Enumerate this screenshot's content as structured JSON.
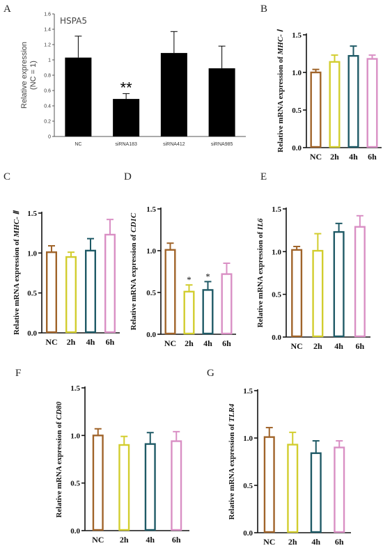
{
  "chart_data": [
    {
      "panel": "A",
      "type": "bar",
      "title": "HSPA5",
      "ylabel": "Relative expression\n(NC = 1)",
      "categories": [
        "NC",
        "siRNA183",
        "siRNA412",
        "siRNA985"
      ],
      "values": [
        1.03,
        0.49,
        1.09,
        0.89
      ],
      "errors": [
        0.28,
        0.07,
        0.28,
        0.29
      ],
      "significance": [
        "",
        "**",
        "",
        ""
      ],
      "ylim": [
        0,
        1.6
      ],
      "yticks": [
        "0",
        "0.2",
        "0.4",
        "0.6",
        "0.8",
        "1",
        "1.2",
        "1.4",
        "1.6"
      ],
      "colors": [
        "#000000",
        "#000000",
        "#000000",
        "#000000"
      ],
      "bar_style": "filled"
    },
    {
      "panel": "B",
      "type": "bar",
      "ylabel_prefix": "Relative mRNA expression of ",
      "gene": "MHC- Ⅰ",
      "categories": [
        "NC",
        "2h",
        "4h",
        "6h"
      ],
      "values": [
        1.0,
        1.14,
        1.22,
        1.18
      ],
      "errors": [
        0.04,
        0.09,
        0.13,
        0.05
      ],
      "significance": [
        "",
        "",
        "",
        ""
      ],
      "ylim": [
        0,
        1.5
      ],
      "yticks": [
        "0.0",
        "0.5",
        "1.0",
        "1.5"
      ],
      "colors": [
        "#a0642a",
        "#d2cd2e",
        "#1f5a66",
        "#d98fc4"
      ],
      "bar_style": "outline"
    },
    {
      "panel": "C",
      "type": "bar",
      "ylabel_prefix": "Relative mRNA expression of ",
      "gene": "MHC- Ⅱ",
      "categories": [
        "NC",
        "2h",
        "4h",
        "6h"
      ],
      "values": [
        1.01,
        0.95,
        1.03,
        1.23
      ],
      "errors": [
        0.08,
        0.06,
        0.15,
        0.19
      ],
      "significance": [
        "",
        "",
        "",
        ""
      ],
      "ylim": [
        0,
        1.5
      ],
      "yticks": [
        "0.0",
        "0.5",
        "1.0",
        "1.5"
      ],
      "colors": [
        "#a0642a",
        "#d2cd2e",
        "#1f5a66",
        "#d98fc4"
      ],
      "bar_style": "outline"
    },
    {
      "panel": "D",
      "type": "bar",
      "ylabel_prefix": "Relative mRNA expression of ",
      "gene": "CD1C",
      "categories": [
        "NC",
        "2h",
        "4h",
        "6h"
      ],
      "values": [
        1.01,
        0.51,
        0.53,
        0.72
      ],
      "errors": [
        0.08,
        0.08,
        0.1,
        0.13
      ],
      "significance": [
        "",
        "*",
        "*",
        ""
      ],
      "ylim": [
        0,
        1.5
      ],
      "yticks": [
        "0.0",
        "0.5",
        "1.0",
        "1.5"
      ],
      "colors": [
        "#a0642a",
        "#d2cd2e",
        "#1f5a66",
        "#d98fc4"
      ],
      "bar_style": "outline"
    },
    {
      "panel": "E",
      "type": "bar",
      "ylabel_prefix": "Relative mRNA expression of ",
      "gene": "IL6",
      "categories": [
        "NC",
        "2h",
        "4h",
        "6h"
      ],
      "values": [
        1.02,
        1.01,
        1.23,
        1.29
      ],
      "errors": [
        0.04,
        0.2,
        0.1,
        0.13
      ],
      "significance": [
        "",
        "",
        "",
        ""
      ],
      "ylim": [
        0,
        1.5
      ],
      "yticks": [
        "0.0",
        "0.5",
        "1.0",
        "1.5"
      ],
      "colors": [
        "#a0642a",
        "#d2cd2e",
        "#1f5a66",
        "#d98fc4"
      ],
      "bar_style": "outline"
    },
    {
      "panel": "F",
      "type": "bar",
      "ylabel_prefix": "Relative mRNA expression of ",
      "gene": "CD80",
      "categories": [
        "NC",
        "2h",
        "4h",
        "6h"
      ],
      "values": [
        1.0,
        0.9,
        0.91,
        0.94
      ],
      "errors": [
        0.07,
        0.09,
        0.12,
        0.1
      ],
      "significance": [
        "",
        "",
        "",
        ""
      ],
      "ylim": [
        0,
        1.5
      ],
      "yticks": [
        "0.0",
        "0.5",
        "1.0",
        "1.5"
      ],
      "colors": [
        "#a0642a",
        "#d2cd2e",
        "#1f5a66",
        "#d98fc4"
      ],
      "bar_style": "outline"
    },
    {
      "panel": "G",
      "type": "bar",
      "ylabel_prefix": "Relative mRNA expression of ",
      "gene": "TLR4",
      "categories": [
        "NC",
        "2h",
        "4h",
        "6h"
      ],
      "values": [
        1.01,
        0.93,
        0.84,
        0.9
      ],
      "errors": [
        0.1,
        0.13,
        0.13,
        0.07
      ],
      "significance": [
        "",
        "",
        "",
        ""
      ],
      "ylim": [
        0,
        1.5
      ],
      "yticks": [
        "0.0",
        "0.5",
        "1.0",
        "1.5"
      ],
      "colors": [
        "#a0642a",
        "#d2cd2e",
        "#1f5a66",
        "#d98fc4"
      ],
      "bar_style": "outline"
    }
  ]
}
